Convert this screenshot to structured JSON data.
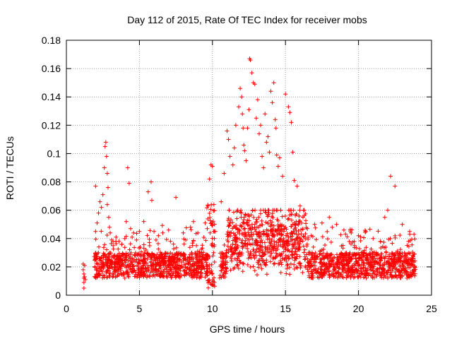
{
  "chart_data": {
    "type": "scatter",
    "title": "Day 112 of 2015, Rate Of TEC Index for receiver mobs",
    "xlabel": "GPS time / hours",
    "ylabel": "ROTI / TECUs",
    "xlim": [
      0,
      25
    ],
    "ylim": [
      0,
      0.18
    ],
    "x_ticks": [
      0,
      5,
      10,
      15,
      20,
      25
    ],
    "x_tick_labels": [
      "0",
      "5",
      "10",
      "15",
      "20",
      "25"
    ],
    "y_ticks": [
      0,
      0.02,
      0.04,
      0.06,
      0.08,
      0.1,
      0.12,
      0.14,
      0.16,
      0.18
    ],
    "y_tick_labels": [
      "0",
      "0.02",
      "0.04",
      "0.06",
      "0.08",
      "0.1",
      "0.12",
      "0.14",
      "0.16",
      "0.18"
    ],
    "grid": true,
    "marker": "+",
    "color": "#ff0000",
    "series": [
      {
        "values_x": [
          1.15,
          1.15,
          1.2,
          1.2,
          1.2,
          1.2,
          1.25,
          1.25,
          1.3,
          2.0,
          2.0,
          2.1,
          2.2,
          2.3,
          2.4,
          2.5,
          2.6,
          2.65,
          2.7,
          2.75,
          2.8,
          2.8,
          2.85,
          2.9,
          2.95,
          3.0,
          3.1,
          3.2,
          3.4,
          3.6,
          3.8,
          4.0,
          4.1,
          4.2,
          4.3,
          4.4,
          4.5,
          4.6,
          4.8,
          5.0,
          5.3,
          5.6,
          5.8,
          5.85,
          6.0,
          6.3,
          6.6,
          7.0,
          7.5,
          8.0,
          8.5,
          8.7,
          9.0,
          9.5,
          9.7,
          9.8,
          9.9,
          10.0,
          10.1,
          10.2,
          10.6,
          10.8,
          11.0,
          11.1,
          11.2,
          11.4,
          11.5,
          11.6,
          11.8,
          11.9,
          12.0,
          12.05,
          12.1,
          12.15,
          12.2,
          12.3,
          12.4,
          12.5,
          12.55,
          12.6,
          12.7,
          12.8,
          12.9,
          13.0,
          13.1,
          13.2,
          13.3,
          13.4,
          13.5,
          13.6,
          13.7,
          13.8,
          13.9,
          14.0,
          14.1,
          14.2,
          14.3,
          14.35,
          14.4,
          14.5,
          14.6,
          14.8,
          15.0,
          15.2,
          15.3,
          15.4,
          15.5,
          15.6,
          15.8,
          16.0,
          16.2,
          16.5,
          17.0,
          17.5,
          18.0,
          18.2,
          18.5,
          19.0,
          19.5,
          20.0,
          20.5,
          21.0,
          21.5,
          21.8,
          22.0,
          22.2,
          22.5,
          23.0,
          23.5,
          23.8
        ],
        "values_y": [
          0.022,
          0.018,
          0.015,
          0.012,
          0.009,
          0.005,
          0.021,
          0.013,
          0.011,
          0.077,
          0.045,
          0.051,
          0.058,
          0.066,
          0.062,
          0.071,
          0.09,
          0.105,
          0.108,
          0.098,
          0.086,
          0.064,
          0.076,
          0.055,
          0.048,
          0.044,
          0.039,
          0.035,
          0.041,
          0.038,
          0.036,
          0.04,
          0.052,
          0.09,
          0.079,
          0.047,
          0.041,
          0.044,
          0.039,
          0.045,
          0.052,
          0.073,
          0.08,
          0.067,
          0.045,
          0.042,
          0.044,
          0.046,
          0.069,
          0.044,
          0.048,
          0.052,
          0.044,
          0.051,
          0.063,
          0.082,
          0.092,
          0.091,
          0.064,
          0.045,
          0.066,
          0.086,
          0.116,
          0.11,
          0.098,
          0.092,
          0.104,
          0.12,
          0.133,
          0.146,
          0.14,
          0.128,
          0.118,
          0.106,
          0.102,
          0.095,
          0.118,
          0.131,
          0.167,
          0.166,
          0.157,
          0.15,
          0.149,
          0.125,
          0.138,
          0.114,
          0.12,
          0.098,
          0.09,
          0.128,
          0.108,
          0.112,
          0.101,
          0.144,
          0.136,
          0.15,
          0.124,
          0.118,
          0.099,
          0.091,
          0.097,
          0.084,
          0.142,
          0.133,
          0.129,
          0.122,
          0.101,
          0.081,
          0.077,
          0.063,
          0.055,
          0.047,
          0.05,
          0.051,
          0.055,
          0.048,
          0.05,
          0.046,
          0.044,
          0.042,
          0.045,
          0.04,
          0.038,
          0.055,
          0.06,
          0.084,
          0.077,
          0.05,
          0.045,
          0.043
        ]
      }
    ]
  }
}
